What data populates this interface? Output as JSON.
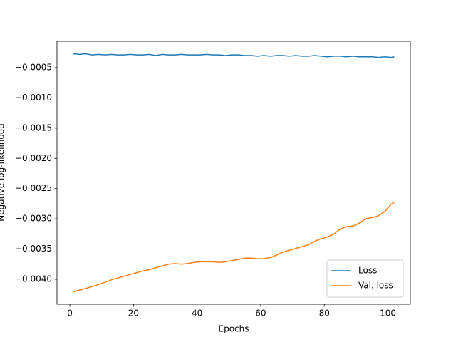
{
  "chart_data": {
    "type": "line",
    "xlabel": "Epochs",
    "ylabel": "Negative log-likelihood",
    "x": [
      1,
      3,
      5,
      7,
      9,
      11,
      13,
      15,
      17,
      19,
      21,
      23,
      25,
      27,
      29,
      31,
      33,
      35,
      37,
      39,
      41,
      43,
      45,
      47,
      49,
      51,
      53,
      55,
      57,
      59,
      61,
      63,
      65,
      67,
      69,
      71,
      73,
      75,
      77,
      79,
      81,
      83,
      85,
      87,
      89,
      91,
      93,
      95,
      97,
      99,
      101,
      102
    ],
    "series": [
      {
        "name": "Loss",
        "color": "#1f77b4",
        "values": [
          -0.00027,
          -0.00028,
          -0.00027,
          -0.00029,
          -0.00028,
          -0.00029,
          -0.00028,
          -0.00029,
          -0.00029,
          -0.00028,
          -0.00029,
          -0.00029,
          -0.00028,
          -0.0003,
          -0.00028,
          -0.00029,
          -0.00029,
          -0.00028,
          -0.00029,
          -0.00029,
          -0.00029,
          -0.00028,
          -0.00029,
          -0.00029,
          -0.0003,
          -0.00029,
          -0.00029,
          -0.0003,
          -0.0003,
          -0.00031,
          -0.0003,
          -0.00031,
          -0.0003,
          -0.0003,
          -0.00031,
          -0.0003,
          -0.00031,
          -0.00031,
          -0.0003,
          -0.00031,
          -0.00032,
          -0.00031,
          -0.00031,
          -0.00032,
          -0.00031,
          -0.00032,
          -0.00032,
          -0.00032,
          -0.00033,
          -0.00032,
          -0.00033,
          -0.00032
        ]
      },
      {
        "name": "Val. loss",
        "color": "#ff7f0e",
        "values": [
          -0.00421,
          -0.00418,
          -0.00415,
          -0.00412,
          -0.00409,
          -0.00405,
          -0.00401,
          -0.00398,
          -0.00395,
          -0.00392,
          -0.00389,
          -0.00386,
          -0.00384,
          -0.00381,
          -0.00378,
          -0.00375,
          -0.00374,
          -0.00375,
          -0.00374,
          -0.00372,
          -0.00371,
          -0.00371,
          -0.00371,
          -0.00372,
          -0.00371,
          -0.00369,
          -0.00367,
          -0.00365,
          -0.00365,
          -0.00366,
          -0.00366,
          -0.00364,
          -0.0036,
          -0.00355,
          -0.00352,
          -0.00349,
          -0.00346,
          -0.00343,
          -0.00337,
          -0.00333,
          -0.0033,
          -0.00325,
          -0.00317,
          -0.00313,
          -0.00312,
          -0.00307,
          -0.003,
          -0.00298,
          -0.00295,
          -0.00288,
          -0.00276,
          -0.00273
        ]
      }
    ],
    "xlim": [
      -4.05,
      107.05
    ],
    "ylim": [
      -0.004413,
      -6.4e-05
    ],
    "xticks": [
      0,
      20,
      40,
      60,
      80,
      100
    ],
    "yticks": [
      {
        "value": -0.004,
        "label": "−0.0040"
      },
      {
        "value": -0.0035,
        "label": "−0.0035"
      },
      {
        "value": -0.003,
        "label": "−0.0030"
      },
      {
        "value": -0.0025,
        "label": "−0.0025"
      },
      {
        "value": -0.002,
        "label": "−0.0020"
      },
      {
        "value": -0.0015,
        "label": "−0.0015"
      },
      {
        "value": -0.001,
        "label": "−0.0010"
      },
      {
        "value": -0.0005,
        "label": "−0.0005"
      }
    ],
    "legend": "lower right",
    "grid": false
  }
}
